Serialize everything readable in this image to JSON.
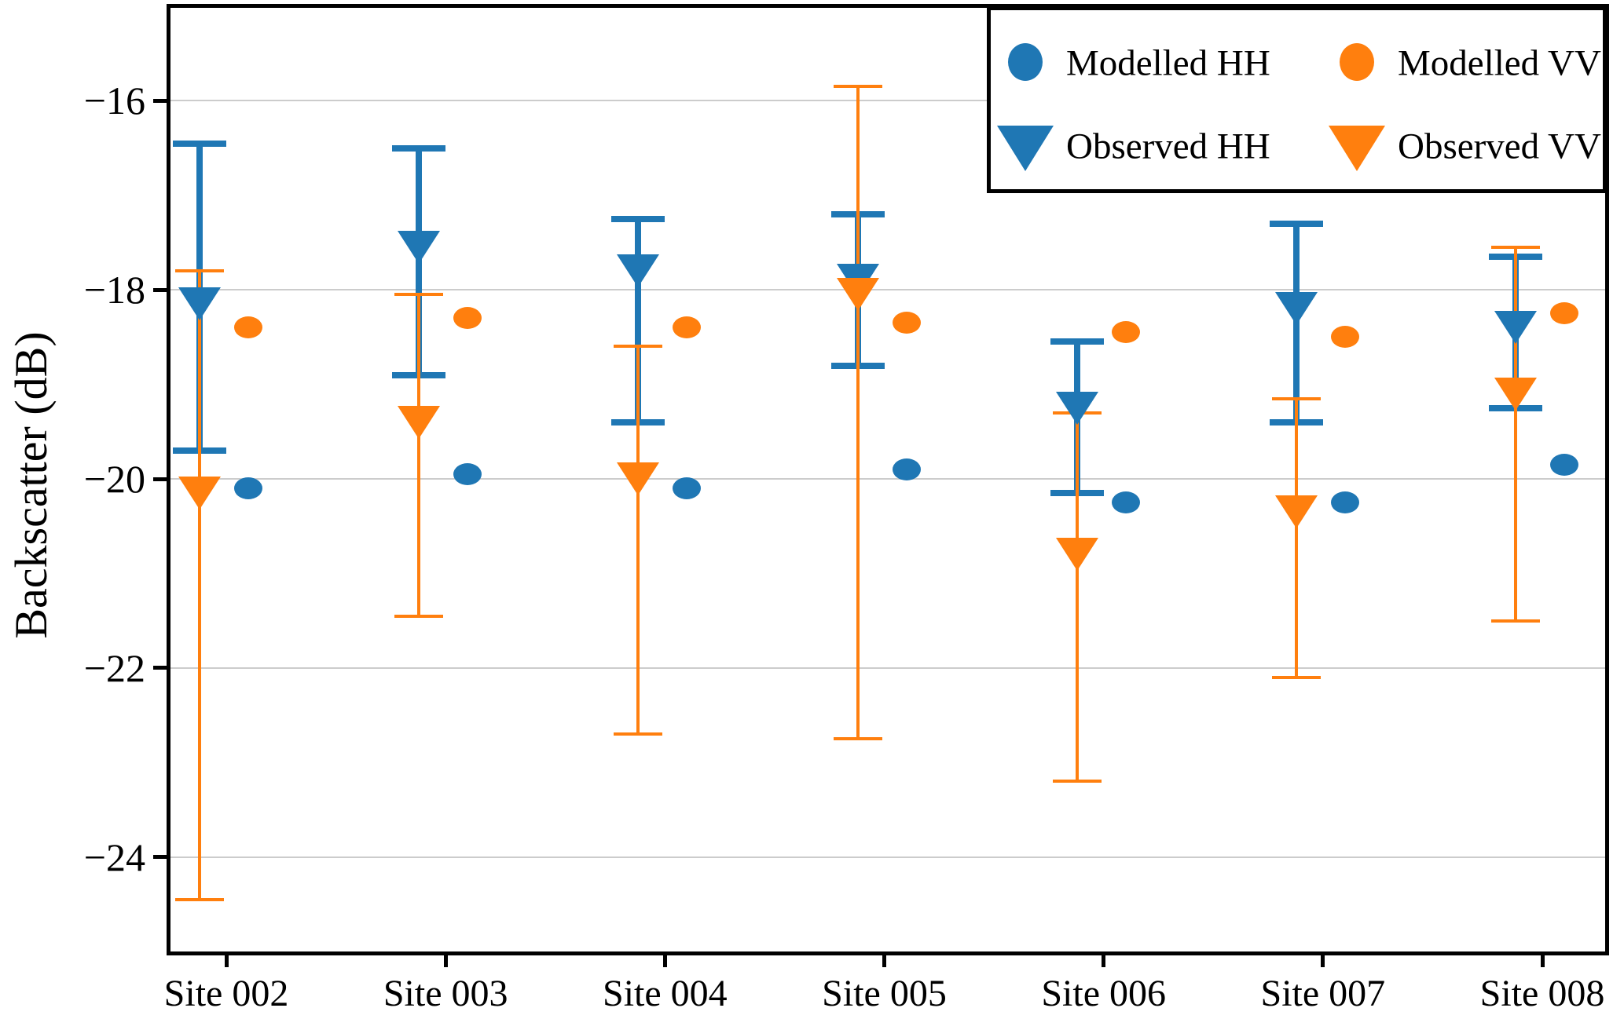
{
  "axes": {
    "ylabel": "Backscatter (dB)",
    "ylim": [
      -25,
      -15
    ],
    "yticks": [
      -16,
      -18,
      -20,
      -22,
      -24
    ],
    "ytick_labels": [
      "−16",
      "−18",
      "−20",
      "−22",
      "−24"
    ],
    "grid": true,
    "grid_color": "#cccccc"
  },
  "colors": {
    "hh_blue": "#1f77b4",
    "vv_orange": "#ff7f0e"
  },
  "legend": {
    "position": "upper right",
    "items": [
      {
        "label": "Modelled HH",
        "marker": "circle-icon",
        "color": "#1f77b4"
      },
      {
        "label": "Modelled VV",
        "marker": "circle-icon",
        "color": "#ff7f0e"
      },
      {
        "label": "Observed HH",
        "marker": "triangle-down-icon",
        "color": "#1f77b4"
      },
      {
        "label": "Observed VV",
        "marker": "triangle-down-icon",
        "color": "#ff7f0e"
      }
    ]
  },
  "chart_data": {
    "type": "scatter",
    "title": "",
    "xlabel": "",
    "ylabel": "Backscatter (dB)",
    "ylim": [
      -25,
      -15
    ],
    "grid": "horizontal",
    "legend_position": "upper right",
    "categories": [
      "Site 002",
      "Site 003",
      "Site 004",
      "Site 005",
      "Site 006",
      "Site 007",
      "Site 008"
    ],
    "series": [
      {
        "name": "Modelled HH",
        "marker": "circle",
        "color": "#1f77b4",
        "values": [
          -20.1,
          -19.95,
          -20.1,
          -19.9,
          -20.25,
          -20.25,
          -19.85
        ]
      },
      {
        "name": "Modelled VV",
        "marker": "circle",
        "color": "#ff7f0e",
        "values": [
          -18.4,
          -18.3,
          -18.4,
          -18.35,
          -18.45,
          -18.5,
          -18.25
        ]
      },
      {
        "name": "Observed HH",
        "marker": "triangle-down",
        "color": "#1f77b4",
        "values": [
          -18.15,
          -17.55,
          -17.8,
          -17.9,
          -19.25,
          -18.2,
          -18.4
        ],
        "err_upper": [
          -16.45,
          -16.5,
          -17.25,
          -17.2,
          -18.55,
          -17.3,
          -17.65
        ],
        "err_lower": [
          -19.7,
          -18.9,
          -19.4,
          -18.8,
          -20.15,
          -19.4,
          -19.25
        ]
      },
      {
        "name": "Observed VV",
        "marker": "triangle-down",
        "color": "#ff7f0e",
        "values": [
          -20.15,
          -19.4,
          -20.0,
          -18.05,
          -20.8,
          -20.35,
          -19.1
        ],
        "err_upper": [
          -17.8,
          -18.05,
          -18.6,
          -15.85,
          -19.3,
          -19.15,
          -17.55
        ],
        "err_lower": [
          -24.45,
          -21.45,
          -22.7,
          -22.75,
          -23.2,
          -22.1,
          -21.5
        ]
      }
    ]
  }
}
